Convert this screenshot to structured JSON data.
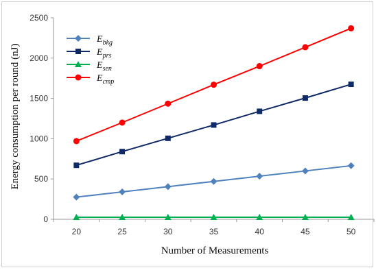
{
  "chart_data": {
    "type": "line",
    "xlabel": "Number of Measurements",
    "ylabel": "Energy consumption per round (nJ)",
    "x": [
      20,
      25,
      30,
      35,
      40,
      45,
      50
    ],
    "xlim": [
      17.5,
      52.5
    ],
    "ylim": [
      0,
      2500
    ],
    "y_ticks": [
      0,
      500,
      1000,
      1500,
      2000,
      2500
    ],
    "grid": false,
    "legend_position": "top-left",
    "series": [
      {
        "base": "E",
        "subscript": "bkg",
        "color": "#4f81bd",
        "marker": "diamond",
        "values": [
          275,
          340,
          405,
          470,
          535,
          600,
          665
        ]
      },
      {
        "base": "E",
        "subscript": "prs",
        "color": "#0f2a66",
        "marker": "square",
        "values": [
          670,
          840,
          1005,
          1170,
          1340,
          1505,
          1675
        ]
      },
      {
        "base": "E",
        "subscript": "sen",
        "color": "#00b050",
        "marker": "triangle",
        "values": [
          25,
          25,
          25,
          25,
          25,
          25,
          25
        ]
      },
      {
        "base": "E",
        "subscript": "cmp",
        "color": "#ff0000",
        "marker": "circle",
        "values": [
          970,
          1200,
          1435,
          1670,
          1900,
          2135,
          2370
        ]
      }
    ]
  }
}
